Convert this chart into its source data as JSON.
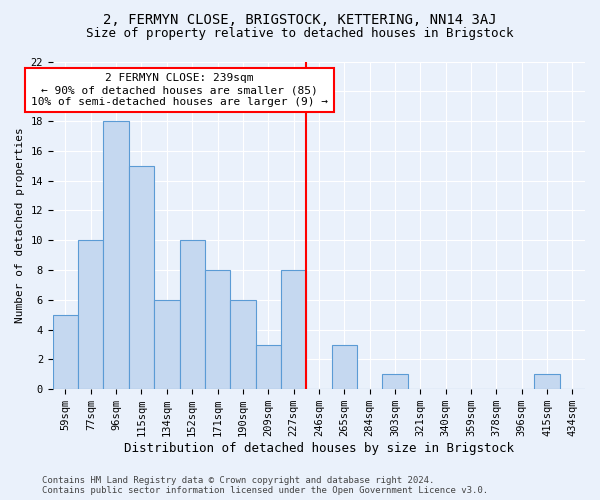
{
  "title1": "2, FERMYN CLOSE, BRIGSTOCK, KETTERING, NN14 3AJ",
  "title2": "Size of property relative to detached houses in Brigstock",
  "xlabel": "Distribution of detached houses by size in Brigstock",
  "ylabel": "Number of detached properties",
  "bar_labels": [
    "59sqm",
    "77sqm",
    "96sqm",
    "115sqm",
    "134sqm",
    "152sqm",
    "171sqm",
    "190sqm",
    "209sqm",
    "227sqm",
    "246sqm",
    "265sqm",
    "284sqm",
    "303sqm",
    "321sqm",
    "340sqm",
    "359sqm",
    "378sqm",
    "396sqm",
    "415sqm",
    "434sqm"
  ],
  "bar_values": [
    5,
    10,
    18,
    15,
    6,
    10,
    8,
    6,
    3,
    8,
    0,
    3,
    0,
    1,
    0,
    0,
    0,
    0,
    0,
    1,
    0
  ],
  "bar_color": "#c5d8f0",
  "bar_edge_color": "#5b9bd5",
  "vline_x": 9.5,
  "vline_color": "red",
  "annotation_line1": "2 FERMYN CLOSE: 239sqm",
  "annotation_line2": "← 90% of detached houses are smaller (85)",
  "annotation_line3": "10% of semi-detached houses are larger (9) →",
  "annotation_box_color": "white",
  "annotation_box_edge_color": "red",
  "ylim": [
    0,
    22
  ],
  "yticks": [
    0,
    2,
    4,
    6,
    8,
    10,
    12,
    14,
    16,
    18,
    20,
    22
  ],
  "footer_line1": "Contains HM Land Registry data © Crown copyright and database right 2024.",
  "footer_line2": "Contains public sector information licensed under the Open Government Licence v3.0.",
  "background_color": "#eaf1fb",
  "plot_bg_color": "#eaf1fb",
  "grid_color": "white",
  "title1_fontsize": 10,
  "title2_fontsize": 9,
  "xlabel_fontsize": 9,
  "ylabel_fontsize": 8,
  "tick_fontsize": 7.5,
  "footer_fontsize": 6.5,
  "annotation_fontsize": 8
}
